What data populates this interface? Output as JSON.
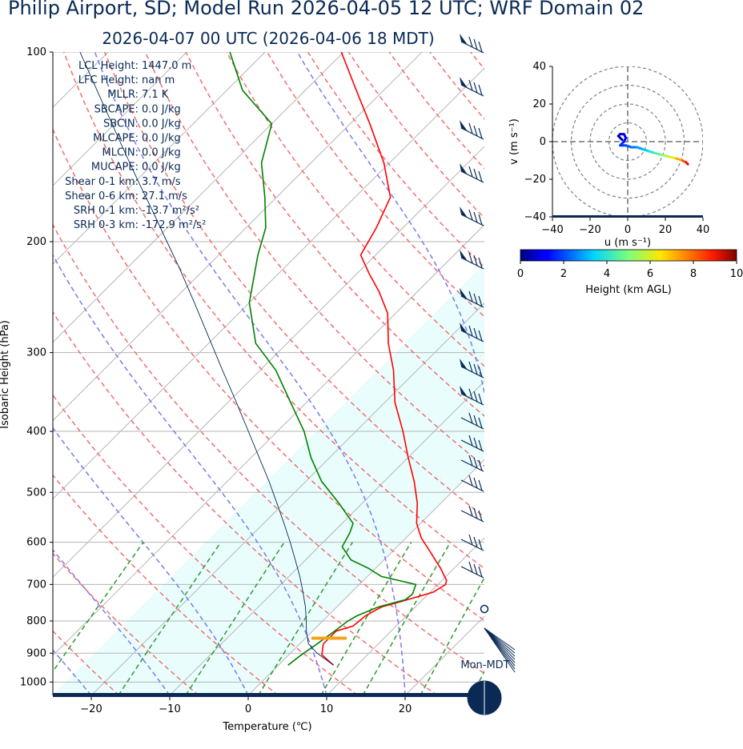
{
  "title": "Philip Airport, SD; Model Run 2026-04-05 12 UTC; WRF Domain 02",
  "subtitle": "2026-04-07 00 UTC  (2026-04-06 18 MDT)",
  "parameters": [
    {
      "label": "LCL Height:",
      "value": "1447.0 m"
    },
    {
      "label": "LFC Height:",
      "value": "nan m"
    },
    {
      "label": "MLLR:",
      "value": "7.1 K"
    },
    {
      "label": "SBCAPE:",
      "value": "0.0 J/kg"
    },
    {
      "label": "SBCIN:",
      "value": "0.0 J/kg"
    },
    {
      "label": "MLCAPE:",
      "value": "0.0 J/kg"
    },
    {
      "label": "MLCIN:",
      "value": "0.0 J/kg"
    },
    {
      "label": "MUCAPE:",
      "value": "0.0 J/kg"
    },
    {
      "label": "Shear 0-1 km:",
      "value": "3.7 m/s"
    },
    {
      "label": "Shear 0-6 km:",
      "value": "27.1 m/s"
    },
    {
      "label": "SRH 0-1 km:",
      "value": "-13.7 m²/s²"
    },
    {
      "label": "SRH 0-3 km:",
      "value": "-172.9 m²/s²"
    }
  ],
  "chart_data": [
    {
      "type": "line",
      "name": "skew-t",
      "xlabel": "Temperature (℃)",
      "ylabel": "Isobaric Height (hPa)",
      "xlim": [
        -25,
        30
      ],
      "ylim": [
        1050,
        100
      ],
      "yscale": "log",
      "xticks": [
        -20,
        -10,
        0,
        10,
        20
      ],
      "yticks": [
        100,
        200,
        300,
        400,
        500,
        600,
        700,
        800,
        900,
        1000
      ],
      "grid": true,
      "skew": 33,
      "series": [
        {
          "role": "temperature",
          "color": "#ff0000",
          "p": [
            940,
            905,
            870,
            830,
            815,
            785,
            760,
            745,
            720,
            700,
            690,
            660,
            625,
            590,
            560,
            520,
            480,
            440,
            400,
            360,
            320,
            290,
            260,
            240,
            225,
            210,
            190,
            170,
            150,
            130,
            115,
            100
          ],
          "t": [
            7.0,
            4.2,
            3.0,
            3.0,
            4.5,
            4.8,
            5.7,
            7.5,
            10.4,
            11.0,
            10.6,
            8.3,
            5.2,
            1.9,
            -0.5,
            -3.0,
            -6.2,
            -10.0,
            -14.0,
            -18.7,
            -23.0,
            -27.1,
            -31.0,
            -34.9,
            -38.4,
            -41.9,
            -43.4,
            -45.5,
            -50.7,
            -57.5,
            -63.5,
            -70.3
          ]
        },
        {
          "role": "dewpoint",
          "color": "#008000",
          "p": [
            940,
            905,
            870,
            830,
            800,
            785,
            760,
            740,
            725,
            700,
            680,
            660,
            640,
            610,
            580,
            560,
            520,
            480,
            440,
            400,
            360,
            320,
            290,
            250,
            210,
            190,
            170,
            150,
            130,
            115,
            100
          ],
          "t": [
            1.2,
            1.6,
            2.2,
            2.8,
            3.2,
            3.7,
            5.3,
            7.8,
            8.0,
            7.2,
            1.8,
            -0.9,
            -4.2,
            -7.0,
            -7.8,
            -8.6,
            -13.0,
            -18.0,
            -22.4,
            -26.6,
            -32.0,
            -38.0,
            -44.0,
            -50.0,
            -55.0,
            -57.5,
            -61.5,
            -66.3,
            -70.0,
            -78.0,
            -84.5
          ]
        },
        {
          "role": "parcel",
          "color": "#002b55",
          "p": [
            940,
            900,
            870,
            830,
            800,
            760,
            720,
            680,
            640,
            600,
            560,
            520,
            480,
            440,
            400,
            360,
            320,
            280,
            250,
            220,
            200,
            180,
            160,
            140,
            120,
            100
          ],
          "t": [
            7.0,
            3.4,
            1.1,
            -0.8,
            -2.1,
            -4.0,
            -6.2,
            -8.6,
            -11.3,
            -14.2,
            -17.4,
            -20.9,
            -24.7,
            -29.0,
            -33.7,
            -38.9,
            -44.8,
            -51.4,
            -57.0,
            -63.4,
            -68.3,
            -73.7,
            -79.8,
            -86.6,
            -94.4,
            -103.6
          ]
        }
      ],
      "lcl_p": 852,
      "annotations": [
        "Mon-MDT"
      ]
    },
    {
      "type": "line",
      "name": "hodograph",
      "xlabel": "u (m s⁻¹)",
      "ylabel": "v (m s⁻¹)",
      "xlim": [
        -40,
        40
      ],
      "ylim": [
        -40,
        40
      ],
      "xticks": [
        -40,
        -20,
        0,
        20,
        40
      ],
      "yticks": [
        -40,
        -20,
        0,
        20,
        40
      ],
      "rings": [
        10,
        20,
        30,
        40
      ],
      "colormap": "jet",
      "clim": [
        0,
        10
      ],
      "colorbar_label": "Height (km AGL)",
      "colorbar_ticks": [
        0,
        2,
        4,
        6,
        8,
        10
      ],
      "series": [
        {
          "u": [
            -3,
            -4,
            -5,
            -4,
            -2,
            -1,
            -2,
            -3,
            -4,
            -1,
            2,
            5,
            8,
            11,
            14,
            18,
            22,
            26,
            29,
            31,
            32
          ],
          "v": [
            1,
            2,
            3,
            4,
            4,
            2,
            0,
            -1,
            -2,
            -2,
            -3,
            -3,
            -4,
            -5,
            -6,
            -7,
            -8,
            -9,
            -10,
            -11,
            -12
          ],
          "z": [
            0.3,
            0.5,
            0.7,
            0.9,
            1.1,
            1.3,
            1.5,
            1.7,
            1.9,
            2.2,
            2.6,
            3.0,
            3.5,
            4.0,
            4.6,
            5.2,
            6.0,
            7.0,
            8.0,
            9.0,
            10.0
          ]
        }
      ]
    }
  ]
}
